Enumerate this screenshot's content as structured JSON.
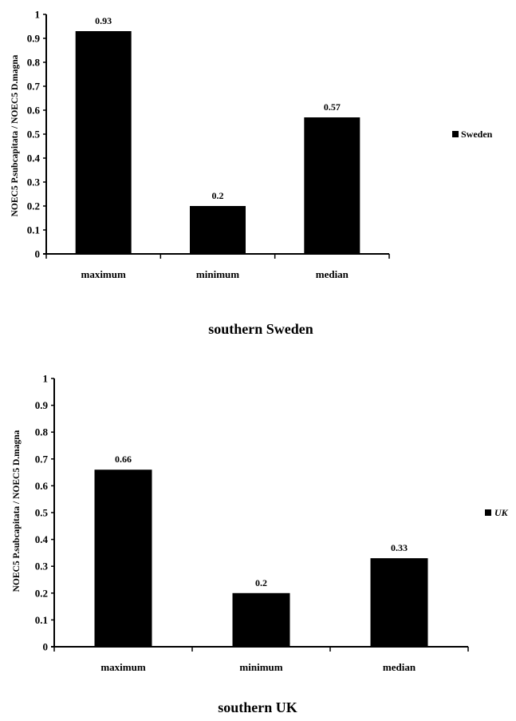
{
  "chart_data": [
    {
      "type": "bar",
      "title": "southern Sweden",
      "ylabel": "NOEC5 P.subcapitata / NOEC5 D.magna",
      "xlabel": "",
      "categories": [
        "maximum",
        "minimum",
        "median"
      ],
      "series": [
        {
          "name": "Sweden",
          "values": [
            0.93,
            0.2,
            0.57
          ]
        }
      ],
      "data_labels": [
        "0.93",
        "0.2",
        "0.57"
      ],
      "ylim": [
        0,
        1
      ],
      "yticks": [
        "0",
        "0.1",
        "0.2",
        "0.3",
        "0.4",
        "0.5",
        "0.6",
        "0.7",
        "0.8",
        "0.9",
        "1"
      ],
      "grid": false,
      "legend_position": "right",
      "bar_color": "#000000"
    },
    {
      "type": "bar",
      "title": "southern UK",
      "ylabel": "NOEC5 P.subcapitata / NOEC5 D.magna",
      "xlabel": "",
      "categories": [
        "maximum",
        "minimum",
        "median"
      ],
      "series": [
        {
          "name": "UK",
          "values": [
            0.66,
            0.2,
            0.33
          ]
        }
      ],
      "data_labels": [
        "0.66",
        "0.2",
        "0.33"
      ],
      "ylim": [
        0,
        1
      ],
      "yticks": [
        "0",
        "0.1",
        "0.2",
        "0.3",
        "0.4",
        "0.5",
        "0.6",
        "0.7",
        "0.8",
        "0.9",
        "1"
      ],
      "grid": false,
      "legend_position": "right",
      "bar_color": "#000000"
    }
  ]
}
